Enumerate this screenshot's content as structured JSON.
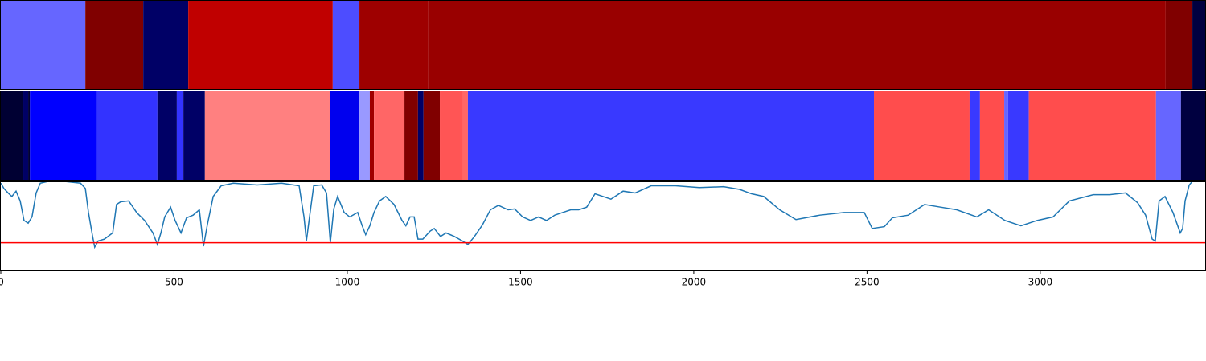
{
  "chart_data": [
    {
      "type": "segments",
      "xlim": [
        0,
        3476
      ],
      "edges": [
        0,
        244,
        411,
        541,
        958,
        1035,
        1234,
        3362,
        3439,
        3476
      ],
      "colors": [
        "#6666ff",
        "#800000",
        "#000066",
        "#c00000",
        "#4d4dff",
        "#9e0000",
        "#990000",
        "#800000",
        "#000040"
      ]
    },
    {
      "type": "segments",
      "xlim": [
        0,
        3476
      ],
      "edges": [
        0,
        65,
        79,
        84,
        278,
        452,
        508,
        527,
        589,
        951,
        1035,
        1065,
        1077,
        1165,
        1204,
        1220,
        1267,
        1334,
        1348,
        2520,
        2796,
        2826,
        2896,
        2907,
        2967,
        3334,
        3406,
        3476
      ],
      "colors": [
        "#000033",
        "#000066",
        "#000033",
        "#0000ff",
        "#3333ff",
        "#000066",
        "#3333ff",
        "#000066",
        "#ff8080",
        "#0000ee",
        "#9999ff",
        "#a00000",
        "#ff6666",
        "#800000",
        "#000066",
        "#800000",
        "#ff5555",
        "#ff6666",
        "#3939ff",
        "#ff4d4d",
        "#3939ff",
        "#ff4d4d",
        "#6666ff",
        "#3939ff",
        "#ff4d4d",
        "#6666ff",
        "#000040"
      ]
    },
    {
      "type": "line",
      "xlim": [
        0,
        3476
      ],
      "ylim": [
        0,
        1
      ],
      "xticks": [
        0,
        500,
        1000,
        1500,
        2000,
        2500,
        3000
      ],
      "color": "#1f77b4",
      "hline": 0.31,
      "hline_color": "#ff0000",
      "x": [
        0,
        9,
        21,
        32,
        44,
        56,
        67,
        79,
        90,
        102,
        114,
        137,
        183,
        230,
        244,
        253,
        265,
        271,
        281,
        299,
        323,
        334,
        346,
        369,
        392,
        415,
        439,
        452,
        462,
        473,
        490,
        503,
        520,
        536,
        555,
        573,
        585,
        596,
        613,
        636,
        671,
        740,
        810,
        861,
        875,
        882,
        891,
        903,
        926,
        940,
        951,
        961,
        972,
        991,
        1007,
        1030,
        1042,
        1053,
        1065,
        1077,
        1093,
        1111,
        1135,
        1158,
        1169,
        1181,
        1193,
        1204,
        1218,
        1239,
        1251,
        1269,
        1285,
        1309,
        1332,
        1348,
        1367,
        1390,
        1413,
        1436,
        1464,
        1483,
        1506,
        1529,
        1552,
        1575,
        1599,
        1622,
        1645,
        1668,
        1691,
        1715,
        1761,
        1796,
        1831,
        1877,
        1947,
        2016,
        2086,
        2132,
        2167,
        2202,
        2248,
        2295,
        2364,
        2434,
        2492,
        2515,
        2550,
        2573,
        2619,
        2666,
        2712,
        2759,
        2817,
        2851,
        2898,
        2944,
        2991,
        3037,
        3084,
        3153,
        3200,
        3246,
        3281,
        3304,
        3323,
        3332,
        3343,
        3360,
        3383,
        3404,
        3411,
        3418,
        3430,
        3439,
        3476
      ],
      "values": [
        0.98,
        0.92,
        0.87,
        0.83,
        0.89,
        0.78,
        0.56,
        0.53,
        0.6,
        0.87,
        0.98,
        1.0,
        1.0,
        0.98,
        0.92,
        0.65,
        0.38,
        0.26,
        0.33,
        0.35,
        0.42,
        0.74,
        0.77,
        0.78,
        0.65,
        0.56,
        0.42,
        0.29,
        0.42,
        0.6,
        0.71,
        0.56,
        0.42,
        0.59,
        0.62,
        0.68,
        0.27,
        0.51,
        0.83,
        0.95,
        0.98,
        0.96,
        0.98,
        0.95,
        0.6,
        0.33,
        0.6,
        0.95,
        0.96,
        0.87,
        0.31,
        0.69,
        0.83,
        0.65,
        0.6,
        0.65,
        0.51,
        0.4,
        0.5,
        0.65,
        0.78,
        0.83,
        0.74,
        0.56,
        0.5,
        0.6,
        0.6,
        0.35,
        0.35,
        0.44,
        0.47,
        0.38,
        0.42,
        0.38,
        0.33,
        0.29,
        0.38,
        0.51,
        0.68,
        0.73,
        0.68,
        0.69,
        0.6,
        0.56,
        0.6,
        0.56,
        0.62,
        0.65,
        0.68,
        0.68,
        0.71,
        0.86,
        0.8,
        0.89,
        0.87,
        0.95,
        0.95,
        0.93,
        0.94,
        0.91,
        0.86,
        0.83,
        0.68,
        0.57,
        0.62,
        0.65,
        0.65,
        0.47,
        0.49,
        0.59,
        0.62,
        0.74,
        0.71,
        0.68,
        0.6,
        0.68,
        0.56,
        0.5,
        0.56,
        0.6,
        0.78,
        0.85,
        0.85,
        0.87,
        0.76,
        0.62,
        0.35,
        0.33,
        0.78,
        0.83,
        0.65,
        0.42,
        0.47,
        0.78,
        0.96,
        1.0,
        1.0
      ]
    }
  ]
}
